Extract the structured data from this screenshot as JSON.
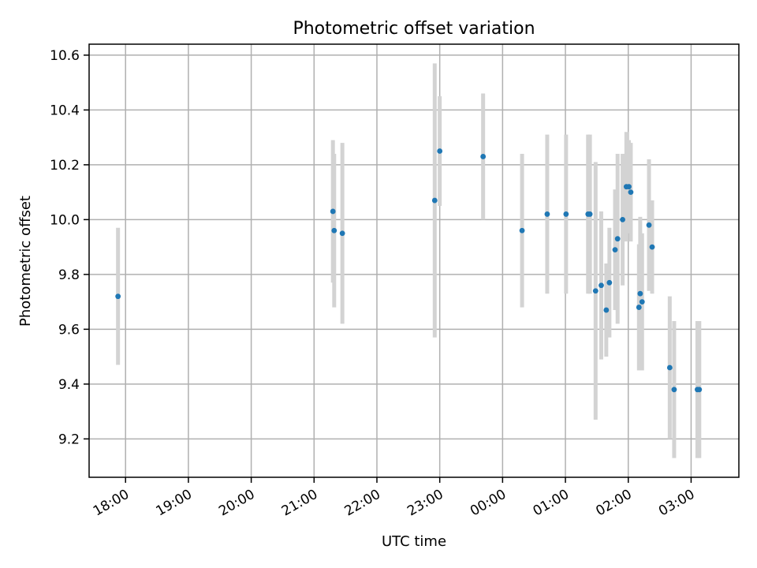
{
  "chart_data": {
    "type": "scatter",
    "title": "Photometric offset variation",
    "xlabel": "UTC time",
    "ylabel": "Photometric offset",
    "grid": true,
    "xlim": [
      17.42,
      27.76
    ],
    "ylim": [
      9.06,
      10.64
    ],
    "x_ticks": [
      {
        "value": 18,
        "label": "18:00"
      },
      {
        "value": 19,
        "label": "19:00"
      },
      {
        "value": 20,
        "label": "20:00"
      },
      {
        "value": 21,
        "label": "21:00"
      },
      {
        "value": 22,
        "label": "22:00"
      },
      {
        "value": 23,
        "label": "23:00"
      },
      {
        "value": 24,
        "label": "00:00"
      },
      {
        "value": 25,
        "label": "01:00"
      },
      {
        "value": 26,
        "label": "02:00"
      },
      {
        "value": 27,
        "label": "03:00"
      }
    ],
    "y_ticks": [
      {
        "value": 9.2,
        "label": "9.2"
      },
      {
        "value": 9.4,
        "label": "9.4"
      },
      {
        "value": 9.6,
        "label": "9.6"
      },
      {
        "value": 9.8,
        "label": "9.8"
      },
      {
        "value": 10.0,
        "label": "10.0"
      },
      {
        "value": 10.2,
        "label": "10.2"
      },
      {
        "value": 10.4,
        "label": "10.4"
      },
      {
        "value": 10.6,
        "label": "10.6"
      }
    ],
    "marker_color": "#1f77b4",
    "errorbar_color": "#d3d3d3",
    "points": [
      {
        "x": 17.88,
        "y": 9.72,
        "err": 0.25
      },
      {
        "x": 21.3,
        "y": 10.03,
        "err": 0.26
      },
      {
        "x": 21.32,
        "y": 9.96,
        "err": 0.28
      },
      {
        "x": 21.45,
        "y": 9.95,
        "err": 0.33
      },
      {
        "x": 22.92,
        "y": 10.07,
        "err": 0.5
      },
      {
        "x": 23.0,
        "y": 10.25,
        "err": 0.2
      },
      {
        "x": 23.69,
        "y": 10.23,
        "err": 0.23
      },
      {
        "x": 24.31,
        "y": 9.96,
        "err": 0.28
      },
      {
        "x": 24.71,
        "y": 10.02,
        "err": 0.29
      },
      {
        "x": 25.01,
        "y": 10.02,
        "err": 0.29
      },
      {
        "x": 25.36,
        "y": 10.02,
        "err": 0.29
      },
      {
        "x": 25.39,
        "y": 10.02,
        "err": 0.29
      },
      {
        "x": 25.48,
        "y": 9.74,
        "err": 0.47
      },
      {
        "x": 25.57,
        "y": 9.76,
        "err": 0.27
      },
      {
        "x": 25.65,
        "y": 9.67,
        "err": 0.17
      },
      {
        "x": 25.7,
        "y": 9.77,
        "err": 0.2
      },
      {
        "x": 25.79,
        "y": 9.89,
        "err": 0.22
      },
      {
        "x": 25.83,
        "y": 9.93,
        "err": 0.31
      },
      {
        "x": 25.91,
        "y": 10.0,
        "err": 0.24
      },
      {
        "x": 25.97,
        "y": 10.12,
        "err": 0.2
      },
      {
        "x": 26.01,
        "y": 10.12,
        "err": 0.17
      },
      {
        "x": 26.04,
        "y": 10.1,
        "err": 0.18
      },
      {
        "x": 26.17,
        "y": 9.68,
        "err": 0.23
      },
      {
        "x": 26.19,
        "y": 9.73,
        "err": 0.28
      },
      {
        "x": 26.22,
        "y": 9.7,
        "err": 0.25
      },
      {
        "x": 26.33,
        "y": 9.98,
        "err": 0.24
      },
      {
        "x": 26.38,
        "y": 9.9,
        "err": 0.17
      },
      {
        "x": 26.66,
        "y": 9.46,
        "err": 0.26
      },
      {
        "x": 26.73,
        "y": 9.38,
        "err": 0.25
      },
      {
        "x": 27.1,
        "y": 9.38,
        "err": 0.25
      },
      {
        "x": 27.13,
        "y": 9.38,
        "err": 0.25
      }
    ]
  }
}
